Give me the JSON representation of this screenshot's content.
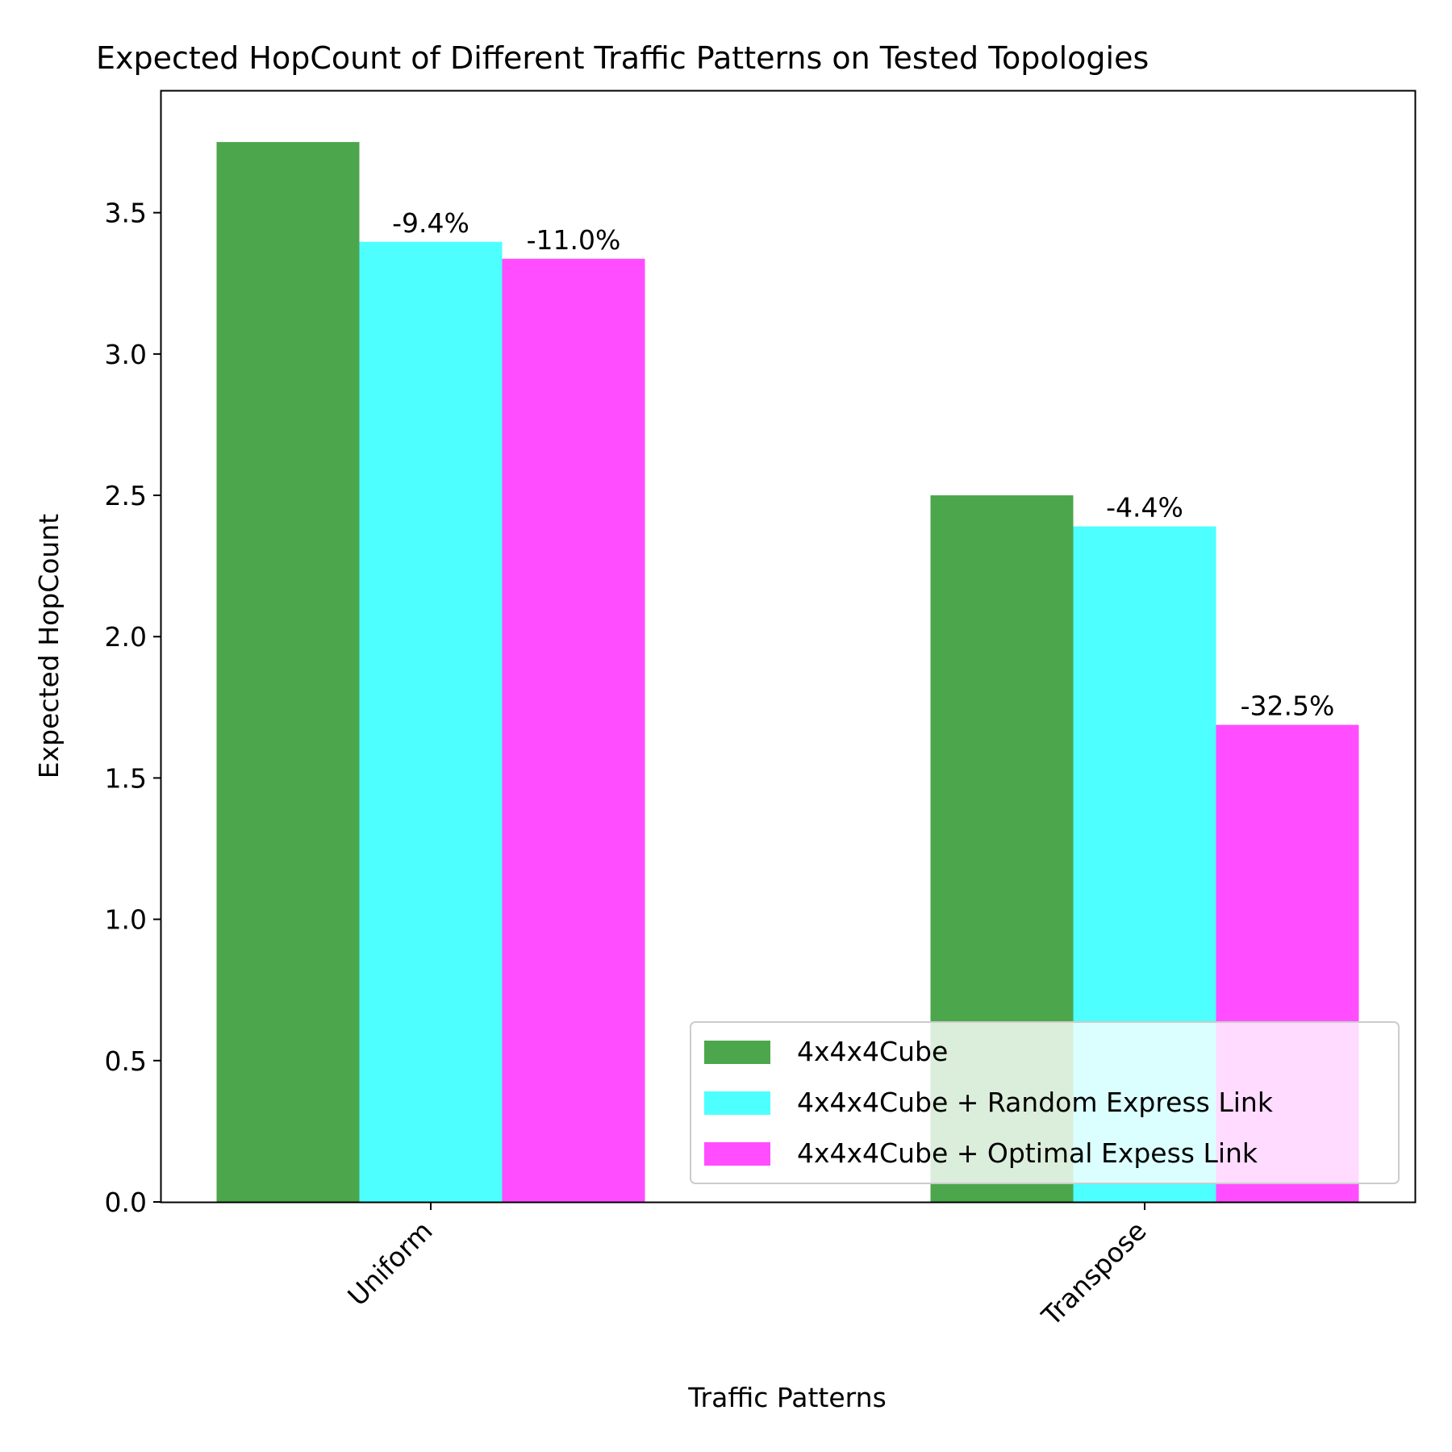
{
  "chart_data": {
    "type": "bar",
    "title": "Expected HopCount of Different Traffic Patterns on Tested Topologies",
    "xlabel": "Traffic Patterns",
    "ylabel": "Expected HopCount",
    "categories": [
      "Uniform",
      "Transpose"
    ],
    "ylim": [
      0,
      3.93
    ],
    "yticks": [
      0.0,
      0.5,
      1.0,
      1.5,
      2.0,
      2.5,
      3.0,
      3.5
    ],
    "ytick_labels": [
      "0.0",
      "0.5",
      "1.0",
      "1.5",
      "2.0",
      "2.5",
      "3.0",
      "3.5"
    ],
    "grid": false,
    "legend_position": "lower-right",
    "series": [
      {
        "name": "4x4x4Cube",
        "color": "#4ca64c",
        "values": [
          3.75,
          2.5
        ],
        "labels": [
          "",
          ""
        ]
      },
      {
        "name": "4x4x4Cube + Random Express Link",
        "color": "#4dffff",
        "values": [
          3.397,
          2.39
        ],
        "labels": [
          "-9.4%",
          "-4.4%"
        ]
      },
      {
        "name": "4x4x4Cube + Optimal Expess Link",
        "color": "#ff4dff",
        "values": [
          3.337,
          1.688
        ],
        "labels": [
          "-11.0%",
          "-32.5%"
        ]
      }
    ]
  }
}
